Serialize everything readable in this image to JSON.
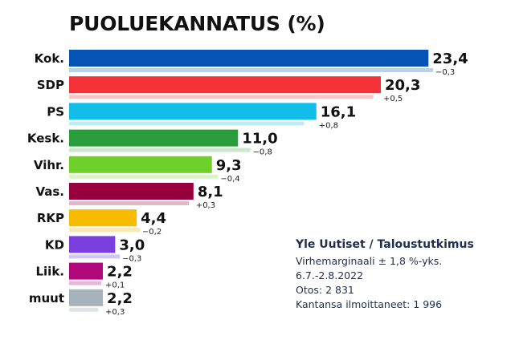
{
  "chart_data": {
    "type": "bar",
    "orientation": "horizontal",
    "title": "PUOLUEKANNATUS (%)",
    "categories": [
      "Kok.",
      "SDP",
      "PS",
      "Kesk.",
      "Vihr.",
      "Vas.",
      "RKP",
      "KD",
      "Liik.",
      "muut"
    ],
    "values": [
      23.4,
      20.3,
      16.1,
      11.0,
      9.3,
      8.1,
      4.4,
      3.0,
      2.2,
      2.2
    ],
    "value_labels": [
      "23,4",
      "20,3",
      "16,1",
      "11,0",
      "9,3",
      "8,1",
      "4,4",
      "3,0",
      "2,2",
      "2,2"
    ],
    "previous_values": [
      23.7,
      19.8,
      15.3,
      11.8,
      9.7,
      7.8,
      4.6,
      3.3,
      2.1,
      1.9
    ],
    "change_labels": [
      "−0,3",
      "+0,5",
      "+0,8",
      "−0,8",
      "−0,4",
      "+0,3",
      "−0,2",
      "−0,3",
      "+0,1",
      "+0,3"
    ],
    "colors": [
      "#0553b5",
      "#f53237",
      "#12bde8",
      "#2a9c3b",
      "#6dd12a",
      "#97003c",
      "#f7bb00",
      "#7b3fe0",
      "#b0087a",
      "#a7b3bb"
    ],
    "previous_colors": [
      "#b4d3ef",
      "#f8c6c9",
      "#bdebf8",
      "#c9e8cc",
      "#daf4c5",
      "#e3b7c7",
      "#fbe7b3",
      "#d3c4f3",
      "#e9b7d6",
      "#dde3e6"
    ],
    "xlim": [
      0,
      23.7
    ],
    "grid": false,
    "legend": "none"
  },
  "source": {
    "title": "Yle Uutiset / Taloustutkimus",
    "lines": [
      "Virhemarginaali ± 1,8 %-yks.",
      "6.7.-2.8.2022",
      "Otos: 2 831",
      "Kantansa ilmoittaneet: 1 996"
    ]
  }
}
